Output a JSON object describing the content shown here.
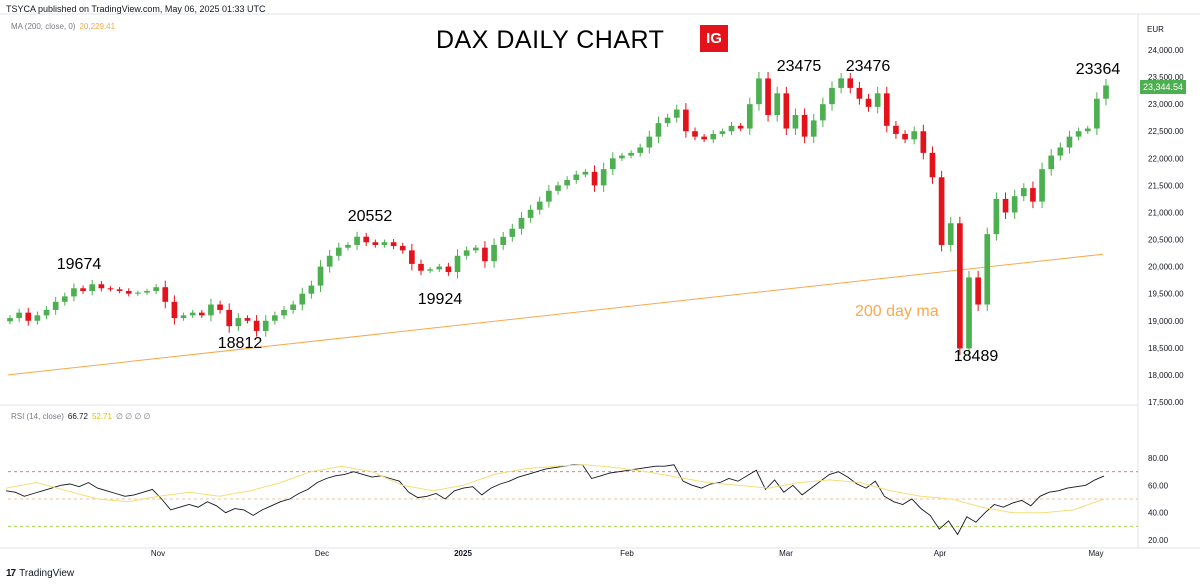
{
  "header": {
    "published": "TSYCA published on TradingView.com, May 06, 2025 01:33 UTC",
    "ma_legend": "MA (200, close, 0)",
    "ma_value": "20,229.41",
    "rsi_legend": "RSI (14, close)",
    "rsi_value": "66.72",
    "rsi_sma_value": "52.71",
    "rsi_zeros": "∅ ∅ ∅ ∅",
    "currency": "EUR",
    "current_price": "23,344.54",
    "brand": "TradingView",
    "logo_text": "IG"
  },
  "colors": {
    "up": "#4caf50",
    "down": "#e4121b",
    "ma": "#f7a94b",
    "rsi": "#131722",
    "rsi_sma": "#f6dd78",
    "level": "#e06c6c",
    "mid": "#f0b070",
    "low": "#9acd32"
  },
  "chart_data": {
    "type": "candlestick",
    "title": "DAX DAILY CHART",
    "price_axis": {
      "ylim": [
        17500,
        24000
      ],
      "ticks": [
        "24,000.00",
        "23,500.00",
        "23,000.00",
        "22,500.00",
        "22,000.00",
        "21,500.00",
        "21,000.00",
        "20,500.00",
        "20,000.00",
        "19,500.00",
        "19,000.00",
        "18,500.00",
        "18,000.00",
        "17,500.00"
      ]
    },
    "rsi_axis": {
      "ylim": [
        20,
        80
      ],
      "ticks": [
        "80.00",
        "60.00",
        "40.00",
        "20.00"
      ],
      "levels": [
        70,
        50,
        30
      ]
    },
    "x_ticks": [
      "Nov",
      "Dec",
      "2025",
      "Feb",
      "Mar",
      "Apr",
      "May"
    ],
    "annotations": [
      "19674",
      "18812",
      "20552",
      "19924",
      "23475",
      "23476",
      "18489",
      "23364",
      "200 day ma"
    ],
    "closes": [
      19050,
      19150,
      19000,
      19100,
      19200,
      19350,
      19450,
      19600,
      19550,
      19674,
      19600,
      19580,
      19550,
      19500,
      19520,
      19550,
      19620,
      19350,
      19050,
      19100,
      19150,
      19100,
      19300,
      19200,
      18900,
      19050,
      19000,
      18812,
      19000,
      19100,
      19200,
      19300,
      19500,
      19650,
      20000,
      20200,
      20350,
      20400,
      20552,
      20450,
      20400,
      20450,
      20380,
      20300,
      20050,
      19924,
      19950,
      20000,
      19900,
      20200,
      20300,
      20350,
      20100,
      20400,
      20550,
      20700,
      20900,
      21050,
      21200,
      21400,
      21500,
      21600,
      21700,
      21750,
      21500,
      21800,
      22000,
      22050,
      22100,
      22200,
      22400,
      22650,
      22750,
      22900,
      22500,
      22400,
      22350,
      22450,
      22500,
      22600,
      22550,
      23000,
      23475,
      22800,
      23200,
      22550,
      22800,
      22400,
      22700,
      23000,
      23300,
      23476,
      23300,
      23100,
      22950,
      23200,
      22600,
      22450,
      22350,
      22500,
      22100,
      21650,
      20400,
      20800,
      18489,
      19800,
      19300,
      20600,
      21250,
      21000,
      21300,
      21450,
      21200,
      21800,
      22050,
      22200,
      22400,
      22500,
      22550,
      23100,
      23344.54
    ],
    "ma200": [
      18000,
      20229.41
    ],
    "rsi": [
      56,
      55,
      52,
      54,
      56,
      58,
      60,
      61,
      59,
      62,
      58,
      56,
      54,
      52,
      53,
      55,
      57,
      50,
      42,
      44,
      46,
      44,
      48,
      45,
      40,
      43,
      42,
      38,
      42,
      45,
      48,
      50,
      54,
      57,
      62,
      65,
      67,
      68,
      70,
      68,
      66,
      67,
      65,
      63,
      55,
      51,
      52,
      54,
      50,
      56,
      58,
      59,
      53,
      58,
      61,
      63,
      66,
      68,
      70,
      72,
      73,
      74,
      75,
      75,
      65,
      67,
      69,
      70,
      71,
      72,
      73,
      74,
      74,
      75,
      63,
      60,
      58,
      61,
      62,
      65,
      63,
      67,
      71,
      57,
      64,
      55,
      60,
      53,
      58,
      63,
      68,
      70,
      66,
      61,
      58,
      63,
      52,
      48,
      46,
      50,
      43,
      38,
      28,
      34,
      24,
      37,
      33,
      40,
      46,
      44,
      47,
      49,
      45,
      52,
      55,
      56,
      58,
      59,
      60,
      64,
      66.72
    ],
    "rsi_sma": [
      58,
      62,
      56,
      50,
      48,
      52,
      55,
      52,
      56,
      62,
      70,
      74,
      70,
      60,
      56,
      60,
      68,
      72,
      74,
      75,
      73,
      70,
      66,
      62,
      60,
      58,
      62,
      64,
      62,
      56,
      52,
      50,
      44,
      40,
      40,
      42,
      50
    ]
  }
}
